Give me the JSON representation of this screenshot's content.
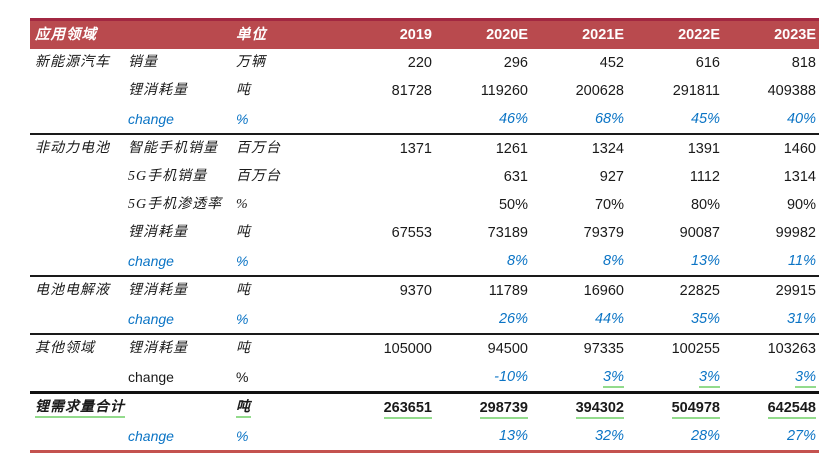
{
  "colors": {
    "header_bg": "#B94A4E",
    "header_top_border": "#A22741",
    "bottom_rule": "#C4524F",
    "change_blue": "#0B74C5",
    "underline_green": "#93DB8C",
    "divider_black": "#1A1A1A"
  },
  "table": {
    "header": {
      "col_app": "应用领域",
      "col_unit": "单位",
      "years": [
        "2019",
        "2020E",
        "2021E",
        "2022E",
        "2023E"
      ]
    },
    "rows": [
      {
        "app": "新能源汽车",
        "item": "销量",
        "unit": "万辆",
        "cls": "",
        "values": [
          "220",
          "296",
          "452",
          "616",
          "818"
        ]
      },
      {
        "app": "",
        "item": "锂消耗量",
        "unit": "吨",
        "cls": "",
        "values": [
          "81728",
          "119260",
          "200628",
          "291811",
          "409388"
        ]
      },
      {
        "app": "",
        "item": "change",
        "unit": "%",
        "cls": "change",
        "values": [
          "",
          "46%",
          "68%",
          "45%",
          "40%"
        ]
      },
      {
        "app": "非动力电池",
        "item": "智能手机销量",
        "unit": "百万台",
        "cls": "",
        "divider": true,
        "values": [
          "1371",
          "1261",
          "1324",
          "1391",
          "1460"
        ]
      },
      {
        "app": "",
        "item": "5G手机销量",
        "unit": "百万台",
        "cls": "",
        "values": [
          "",
          "631",
          "927",
          "1112",
          "1314"
        ]
      },
      {
        "app": "",
        "item": "5G手机渗透率",
        "unit": "%",
        "cls": "",
        "values": [
          "",
          "50%",
          "70%",
          "80%",
          "90%"
        ]
      },
      {
        "app": "",
        "item": "锂消耗量",
        "unit": "吨",
        "cls": "",
        "values": [
          "67553",
          "73189",
          "79379",
          "90087",
          "99982"
        ]
      },
      {
        "app": "",
        "item": "change",
        "unit": "%",
        "cls": "change",
        "values": [
          "",
          "8%",
          "8%",
          "13%",
          "11%"
        ]
      },
      {
        "app": "电池电解液",
        "item": "锂消耗量",
        "unit": "吨",
        "cls": "",
        "divider": true,
        "values": [
          "9370",
          "11789",
          "16960",
          "22825",
          "29915"
        ]
      },
      {
        "app": "",
        "item": "change",
        "unit": "%",
        "cls": "change",
        "values": [
          "",
          "26%",
          "44%",
          "35%",
          "31%"
        ]
      },
      {
        "app": "其他领域",
        "item": "锂消耗量",
        "unit": "吨",
        "cls": "",
        "divider": true,
        "values": [
          "105000",
          "94500",
          "97335",
          "100255",
          "103263"
        ]
      },
      {
        "app": "",
        "item": "change",
        "unit": "%",
        "cls": "change-dark",
        "values": [
          "",
          "-10%",
          "3%",
          "3%",
          "3%"
        ],
        "uvals": [
          false,
          false,
          true,
          true,
          true
        ]
      },
      {
        "app": "锂需求量合计",
        "item": "",
        "unit": "吨",
        "cls": "total",
        "heavy": true,
        "uapp": true,
        "uunit": true,
        "values": [
          "263651",
          "298739",
          "394302",
          "504978",
          "642548"
        ],
        "uvals": [
          true,
          true,
          true,
          true,
          true
        ]
      },
      {
        "app": "",
        "item": "change",
        "unit": "%",
        "cls": "change",
        "values": [
          "",
          "13%",
          "32%",
          "28%",
          "27%"
        ]
      }
    ]
  }
}
